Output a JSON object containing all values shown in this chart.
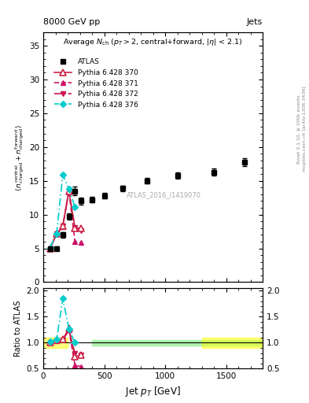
{
  "watermark": "ATLAS_2016_I1419070",
  "xlim": [
    0,
    1800
  ],
  "ylim_main": [
    0,
    37
  ],
  "ylim_ratio": [
    0.5,
    2.05
  ],
  "atlas_x": [
    55,
    110,
    160,
    210,
    260,
    310,
    400,
    500,
    650,
    850,
    1100,
    1400,
    1650
  ],
  "atlas_y": [
    5.0,
    5.0,
    7.0,
    9.7,
    13.5,
    12.0,
    12.2,
    12.8,
    13.9,
    15.0,
    15.8,
    16.3,
    17.8
  ],
  "atlas_yerr": [
    0.2,
    0.25,
    0.4,
    0.5,
    0.6,
    0.5,
    0.4,
    0.4,
    0.4,
    0.4,
    0.5,
    0.5,
    0.6
  ],
  "p370_x": [
    55,
    110,
    160,
    210,
    260,
    310
  ],
  "p370_y": [
    5.0,
    7.1,
    8.3,
    13.4,
    8.0,
    8.0
  ],
  "p371_x": [
    55,
    110,
    160,
    210,
    260,
    310
  ],
  "p371_y": [
    5.1,
    7.1,
    8.2,
    13.6,
    6.0,
    5.9
  ],
  "p372_x": [
    55,
    110,
    160,
    210,
    260,
    310
  ],
  "p372_y": [
    5.0,
    7.1,
    8.3,
    13.5,
    8.1,
    7.6
  ],
  "p376_x": [
    55,
    110,
    160,
    210,
    260
  ],
  "p376_y": [
    5.1,
    7.2,
    15.9,
    13.8,
    11.1
  ],
  "ratio_p370_x": [
    55,
    110,
    160,
    210,
    260,
    310
  ],
  "ratio_p370_y": [
    1.0,
    1.05,
    1.06,
    1.28,
    0.74,
    0.76
  ],
  "ratio_p371_x": [
    55,
    110,
    160,
    210,
    260,
    310
  ],
  "ratio_p371_y": [
    1.01,
    1.04,
    1.06,
    1.25,
    0.57,
    0.54
  ],
  "ratio_p372_x": [
    55,
    110,
    160,
    210,
    260,
    310
  ],
  "ratio_p372_y": [
    1.0,
    1.03,
    1.05,
    1.24,
    0.8,
    0.76
  ],
  "ratio_p376_x": [
    55,
    110,
    160,
    210,
    260
  ],
  "ratio_p376_y": [
    1.02,
    1.06,
    1.85,
    1.27,
    1.0
  ],
  "color_370": "#cc2244",
  "color_371": "#cc1166",
  "color_372": "#cc1155",
  "color_376": "#00cccc"
}
